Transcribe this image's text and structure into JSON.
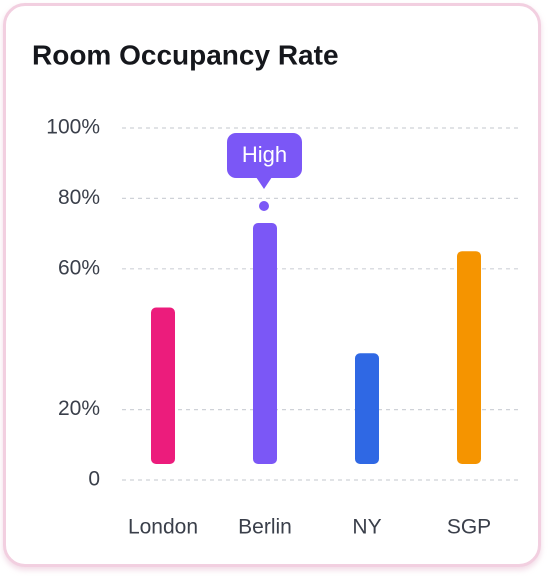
{
  "chart_data": {
    "type": "bar",
    "title": "Room Occupancy Rate",
    "annotation": "High",
    "categories": [
      "London",
      "Berlin",
      "NY",
      "SGP"
    ],
    "values": [
      49,
      73,
      36,
      65
    ],
    "colors": [
      "#ec1c7c",
      "#7b57f6",
      "#2f68e4",
      "#f59400"
    ],
    "ylim": [
      0,
      100
    ],
    "yticks": [
      0,
      {
        "value": 20,
        "label": "20%"
      },
      {
        "value": 60,
        "label": "60%"
      },
      {
        "value": 80,
        "label": "80%"
      },
      {
        "value": 100,
        "label": "100%"
      }
    ],
    "grid": true
  }
}
